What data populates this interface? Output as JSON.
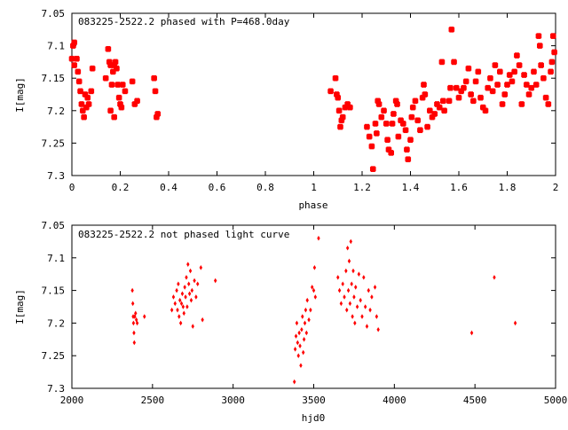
{
  "chart_data": [
    {
      "type": "scatter",
      "title": "083225-2522.2 phased with P=468.0day",
      "xlabel": "phase",
      "ylabel": "I[mag]",
      "xlim": [
        0,
        2
      ],
      "ylim": [
        7.05,
        7.3
      ],
      "y_inverted": true,
      "marker_color": "#ff0000",
      "marker": "star",
      "xticks": [
        "0",
        "0.2",
        "0.4",
        "0.6",
        "0.8",
        "1",
        "1.2",
        "1.4",
        "1.6",
        "1.8",
        "2"
      ],
      "xtick_values": [
        0,
        0.2,
        0.4,
        0.6,
        0.8,
        1,
        1.2,
        1.4,
        1.6,
        1.8,
        2
      ],
      "yticks": [
        "7.05",
        "7.1",
        "7.15",
        "7.2",
        "7.25",
        "7.3"
      ],
      "ytick_values": [
        7.05,
        7.1,
        7.15,
        7.2,
        7.25,
        7.3
      ],
      "points": [
        [
          0.0,
          7.12
        ],
        [
          0.005,
          7.1
        ],
        [
          0.01,
          7.095
        ],
        [
          0.01,
          7.13
        ],
        [
          0.02,
          7.12
        ],
        [
          0.025,
          7.14
        ],
        [
          0.03,
          7.155
        ],
        [
          0.035,
          7.17
        ],
        [
          0.04,
          7.19
        ],
        [
          0.045,
          7.2
        ],
        [
          0.05,
          7.21
        ],
        [
          0.055,
          7.175
        ],
        [
          0.06,
          7.195
        ],
        [
          0.065,
          7.18
        ],
        [
          0.07,
          7.19
        ],
        [
          0.08,
          7.17
        ],
        [
          0.085,
          7.135
        ],
        [
          0.14,
          7.15
        ],
        [
          0.15,
          7.105
        ],
        [
          0.155,
          7.125
        ],
        [
          0.16,
          7.13
        ],
        [
          0.165,
          7.16
        ],
        [
          0.17,
          7.14
        ],
        [
          0.175,
          7.13
        ],
        [
          0.18,
          7.125
        ],
        [
          0.185,
          7.135
        ],
        [
          0.19,
          7.16
        ],
        [
          0.195,
          7.18
        ],
        [
          0.2,
          7.19
        ],
        [
          0.205,
          7.195
        ],
        [
          0.21,
          7.16
        ],
        [
          0.22,
          7.17
        ],
        [
          0.25,
          7.155
        ],
        [
          0.26,
          7.19
        ],
        [
          0.27,
          7.185
        ],
        [
          0.16,
          7.2
        ],
        [
          0.175,
          7.21
        ],
        [
          0.34,
          7.15
        ],
        [
          0.345,
          7.17
        ],
        [
          0.35,
          7.21
        ],
        [
          0.355,
          7.205
        ],
        [
          1.07,
          7.17
        ],
        [
          1.09,
          7.15
        ],
        [
          1.095,
          7.175
        ],
        [
          1.1,
          7.18
        ],
        [
          1.105,
          7.2
        ],
        [
          1.11,
          7.225
        ],
        [
          1.115,
          7.215
        ],
        [
          1.12,
          7.21
        ],
        [
          1.13,
          7.195
        ],
        [
          1.14,
          7.19
        ],
        [
          1.15,
          7.195
        ],
        [
          1.22,
          7.225
        ],
        [
          1.23,
          7.24
        ],
        [
          1.24,
          7.255
        ],
        [
          1.245,
          7.29
        ],
        [
          1.255,
          7.22
        ],
        [
          1.26,
          7.235
        ],
        [
          1.265,
          7.185
        ],
        [
          1.27,
          7.19
        ],
        [
          1.28,
          7.21
        ],
        [
          1.29,
          7.2
        ],
        [
          1.3,
          7.22
        ],
        [
          1.305,
          7.245
        ],
        [
          1.31,
          7.26
        ],
        [
          1.32,
          7.265
        ],
        [
          1.325,
          7.22
        ],
        [
          1.33,
          7.205
        ],
        [
          1.34,
          7.185
        ],
        [
          1.345,
          7.19
        ],
        [
          1.35,
          7.24
        ],
        [
          1.36,
          7.215
        ],
        [
          1.37,
          7.22
        ],
        [
          1.38,
          7.23
        ],
        [
          1.385,
          7.26
        ],
        [
          1.39,
          7.275
        ],
        [
          1.4,
          7.245
        ],
        [
          1.405,
          7.21
        ],
        [
          1.41,
          7.195
        ],
        [
          1.42,
          7.185
        ],
        [
          1.43,
          7.215
        ],
        [
          1.44,
          7.23
        ],
        [
          1.45,
          7.18
        ],
        [
          1.455,
          7.16
        ],
        [
          1.46,
          7.175
        ],
        [
          1.47,
          7.225
        ],
        [
          1.48,
          7.2
        ],
        [
          1.49,
          7.21
        ],
        [
          1.5,
          7.205
        ],
        [
          1.51,
          7.19
        ],
        [
          1.52,
          7.195
        ],
        [
          1.53,
          7.125
        ],
        [
          1.535,
          7.185
        ],
        [
          1.54,
          7.2
        ],
        [
          1.56,
          7.185
        ],
        [
          1.565,
          7.165
        ],
        [
          1.57,
          7.075
        ],
        [
          1.58,
          7.125
        ],
        [
          1.59,
          7.165
        ],
        [
          1.6,
          7.18
        ],
        [
          1.61,
          7.17
        ],
        [
          1.62,
          7.165
        ],
        [
          1.63,
          7.155
        ],
        [
          1.64,
          7.135
        ],
        [
          1.65,
          7.175
        ],
        [
          1.66,
          7.185
        ],
        [
          1.67,
          7.155
        ],
        [
          1.68,
          7.14
        ],
        [
          1.69,
          7.18
        ],
        [
          1.7,
          7.195
        ],
        [
          1.71,
          7.2
        ],
        [
          1.72,
          7.165
        ],
        [
          1.73,
          7.15
        ],
        [
          1.74,
          7.17
        ],
        [
          1.75,
          7.13
        ],
        [
          1.76,
          7.16
        ],
        [
          1.77,
          7.14
        ],
        [
          1.78,
          7.19
        ],
        [
          1.79,
          7.175
        ],
        [
          1.8,
          7.16
        ],
        [
          1.81,
          7.145
        ],
        [
          1.82,
          7.155
        ],
        [
          1.83,
          7.14
        ],
        [
          1.84,
          7.115
        ],
        [
          1.85,
          7.13
        ],
        [
          1.86,
          7.19
        ],
        [
          1.87,
          7.145
        ],
        [
          1.88,
          7.16
        ],
        [
          1.89,
          7.175
        ],
        [
          1.9,
          7.165
        ],
        [
          1.91,
          7.14
        ],
        [
          1.92,
          7.16
        ],
        [
          1.93,
          7.085
        ],
        [
          1.935,
          7.1
        ],
        [
          1.94,
          7.13
        ],
        [
          1.95,
          7.15
        ],
        [
          1.96,
          7.18
        ],
        [
          1.97,
          7.19
        ],
        [
          1.98,
          7.14
        ],
        [
          1.985,
          7.125
        ],
        [
          1.99,
          7.085
        ],
        [
          1.995,
          7.11
        ]
      ]
    },
    {
      "type": "scatter",
      "title": "083225-2522.2 not phased light curve",
      "xlabel": "hjd0",
      "ylabel": "I[mag]",
      "xlim": [
        2000,
        5000
      ],
      "ylim": [
        7.05,
        7.3
      ],
      "y_inverted": true,
      "marker_color": "#ff0000",
      "marker": "diamond",
      "xticks": [
        "2000",
        "2500",
        "3000",
        "3500",
        "4000",
        "4500",
        "5000"
      ],
      "xtick_values": [
        2000,
        2500,
        3000,
        3500,
        4000,
        4500,
        5000
      ],
      "yticks": [
        "7.05",
        "7.1",
        "7.15",
        "7.2",
        "7.25",
        "7.3"
      ],
      "ytick_values": [
        7.05,
        7.1,
        7.15,
        7.2,
        7.25,
        7.3
      ],
      "points": [
        [
          2375,
          7.15
        ],
        [
          2378,
          7.17
        ],
        [
          2380,
          7.19
        ],
        [
          2382,
          7.2
        ],
        [
          2385,
          7.215
        ],
        [
          2387,
          7.23
        ],
        [
          2390,
          7.19
        ],
        [
          2395,
          7.185
        ],
        [
          2400,
          7.195
        ],
        [
          2405,
          7.2
        ],
        [
          2450,
          7.19
        ],
        [
          2620,
          7.18
        ],
        [
          2630,
          7.16
        ],
        [
          2640,
          7.17
        ],
        [
          2650,
          7.15
        ],
        [
          2655,
          7.18
        ],
        [
          2660,
          7.14
        ],
        [
          2665,
          7.19
        ],
        [
          2670,
          7.165
        ],
        [
          2675,
          7.2
        ],
        [
          2680,
          7.17
        ],
        [
          2685,
          7.155
        ],
        [
          2690,
          7.175
        ],
        [
          2695,
          7.185
        ],
        [
          2700,
          7.145
        ],
        [
          2705,
          7.16
        ],
        [
          2710,
          7.13
        ],
        [
          2715,
          7.175
        ],
        [
          2720,
          7.11
        ],
        [
          2725,
          7.14
        ],
        [
          2730,
          7.155
        ],
        [
          2735,
          7.12
        ],
        [
          2740,
          7.165
        ],
        [
          2745,
          7.15
        ],
        [
          2750,
          7.205
        ],
        [
          2760,
          7.135
        ],
        [
          2770,
          7.16
        ],
        [
          2780,
          7.14
        ],
        [
          2800,
          7.115
        ],
        [
          2810,
          7.195
        ],
        [
          2890,
          7.135
        ],
        [
          3380,
          7.29
        ],
        [
          3385,
          7.24
        ],
        [
          3390,
          7.22
        ],
        [
          3395,
          7.2
        ],
        [
          3400,
          7.23
        ],
        [
          3405,
          7.25
        ],
        [
          3410,
          7.215
        ],
        [
          3415,
          7.235
        ],
        [
          3420,
          7.265
        ],
        [
          3425,
          7.21
        ],
        [
          3430,
          7.19
        ],
        [
          3435,
          7.245
        ],
        [
          3440,
          7.225
        ],
        [
          3445,
          7.2
        ],
        [
          3450,
          7.18
        ],
        [
          3455,
          7.215
        ],
        [
          3460,
          7.165
        ],
        [
          3470,
          7.195
        ],
        [
          3480,
          7.18
        ],
        [
          3490,
          7.145
        ],
        [
          3500,
          7.15
        ],
        [
          3505,
          7.115
        ],
        [
          3510,
          7.16
        ],
        [
          3530,
          7.07
        ],
        [
          3650,
          7.13
        ],
        [
          3660,
          7.15
        ],
        [
          3670,
          7.17
        ],
        [
          3680,
          7.14
        ],
        [
          3690,
          7.16
        ],
        [
          3700,
          7.12
        ],
        [
          3705,
          7.18
        ],
        [
          3710,
          7.085
        ],
        [
          3715,
          7.15
        ],
        [
          3720,
          7.105
        ],
        [
          3725,
          7.17
        ],
        [
          3730,
          7.075
        ],
        [
          3735,
          7.14
        ],
        [
          3740,
          7.19
        ],
        [
          3745,
          7.12
        ],
        [
          3750,
          7.16
        ],
        [
          3755,
          7.2
        ],
        [
          3760,
          7.145
        ],
        [
          3770,
          7.175
        ],
        [
          3780,
          7.125
        ],
        [
          3790,
          7.165
        ],
        [
          3800,
          7.19
        ],
        [
          3810,
          7.13
        ],
        [
          3820,
          7.175
        ],
        [
          3830,
          7.205
        ],
        [
          3840,
          7.15
        ],
        [
          3850,
          7.18
        ],
        [
          3860,
          7.16
        ],
        [
          3880,
          7.145
        ],
        [
          3890,
          7.19
        ],
        [
          3900,
          7.21
        ],
        [
          4480,
          7.215
        ],
        [
          4620,
          7.13
        ],
        [
          4750,
          7.2
        ]
      ]
    }
  ]
}
